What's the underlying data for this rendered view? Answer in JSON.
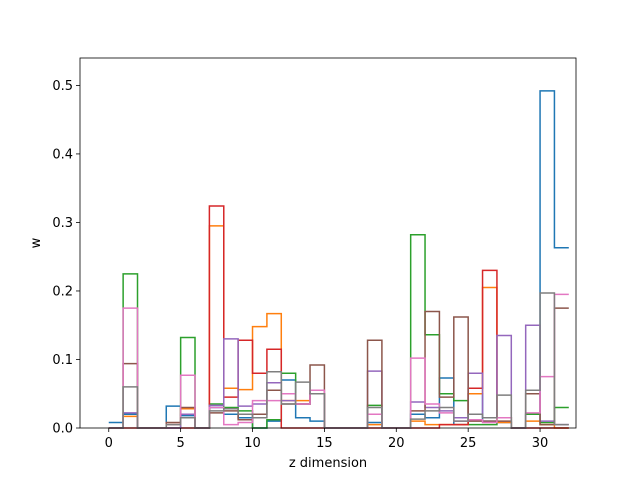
{
  "chart_data": {
    "type": "step",
    "title": "",
    "xlabel": "z dimension",
    "ylabel": "w",
    "xlim": [
      -2,
      32.5
    ],
    "ylim": [
      0,
      0.54
    ],
    "xticks": [
      0,
      5,
      10,
      15,
      20,
      25,
      30
    ],
    "yticks": [
      0.0,
      0.1,
      0.2,
      0.3,
      0.4,
      0.5
    ],
    "grid": false,
    "x": [
      0,
      1,
      2,
      3,
      4,
      5,
      6,
      7,
      8,
      9,
      10,
      11,
      12,
      13,
      14,
      15,
      16,
      17,
      18,
      19,
      20,
      21,
      22,
      23,
      24,
      25,
      26,
      27,
      28,
      29,
      30,
      31
    ],
    "series": [
      {
        "color": "#1f77b4",
        "values": [
          0.008,
          0.02,
          0,
          0,
          0.032,
          0.018,
          0,
          0.03,
          0.02,
          0.015,
          0,
          0.01,
          0.07,
          0.015,
          0.01,
          0,
          0,
          0,
          0.008,
          0,
          0,
          0.02,
          0.015,
          0.073,
          0.005,
          0.05,
          0.01,
          0.008,
          0,
          0.02,
          0.492,
          0.263
        ]
      },
      {
        "color": "#ff7f0e",
        "values": [
          0,
          0.017,
          0,
          0,
          0.005,
          0.028,
          0,
          0.295,
          0.058,
          0.056,
          0.148,
          0.167,
          0.04,
          0.04,
          0.05,
          0,
          0,
          0,
          0.005,
          0,
          0,
          0.01,
          0.005,
          0.005,
          0.005,
          0.05,
          0.205,
          0.008,
          0,
          0.01,
          0.005,
          0
        ]
      },
      {
        "color": "#2ca02c",
        "values": [
          0,
          0.225,
          0,
          0,
          0,
          0.132,
          0,
          0.035,
          0.03,
          0.025,
          0,
          0.012,
          0.08,
          0.035,
          0.05,
          0,
          0,
          0,
          0.033,
          0,
          0,
          0.282,
          0.136,
          0.05,
          0.04,
          0.005,
          0.005,
          0.015,
          0,
          0.02,
          0.008,
          0.03
        ]
      },
      {
        "color": "#d62728",
        "values": [
          0,
          0,
          0,
          0,
          0,
          0,
          0,
          0.324,
          0.045,
          0.128,
          0.08,
          0.115,
          0,
          0,
          0,
          0,
          0,
          0,
          0,
          0,
          0,
          0,
          0,
          0.005,
          0.005,
          0.058,
          0.23,
          0.015,
          0,
          0,
          0,
          0
        ]
      },
      {
        "color": "#9467bd",
        "values": [
          0,
          0.022,
          0,
          0,
          0,
          0.02,
          0,
          0.033,
          0.13,
          0.032,
          0.035,
          0.066,
          0.04,
          0.035,
          0.05,
          0,
          0,
          0,
          0.083,
          0,
          0,
          0.038,
          0.03,
          0.025,
          0.015,
          0.08,
          0.015,
          0.135,
          0,
          0.15,
          0.01,
          0.005
        ]
      },
      {
        "color": "#8c564b",
        "values": [
          0,
          0.094,
          0,
          0,
          0.008,
          0.03,
          0,
          0.022,
          0.025,
          0.012,
          0.02,
          0.055,
          0.035,
          0.035,
          0.092,
          0,
          0,
          0,
          0.128,
          0,
          0,
          0.025,
          0.17,
          0.045,
          0.162,
          0.01,
          0.01,
          0.01,
          0,
          0.05,
          0.005,
          0.175
        ]
      },
      {
        "color": "#e377c2",
        "values": [
          0,
          0.175,
          0,
          0,
          0.005,
          0.077,
          0,
          0.03,
          0.005,
          0.008,
          0.04,
          0.04,
          0.05,
          0.035,
          0.055,
          0,
          0,
          0,
          0.02,
          0,
          0,
          0.102,
          0.035,
          0.022,
          0.01,
          0.012,
          0.008,
          0.015,
          0,
          0.022,
          0.075,
          0.195
        ]
      },
      {
        "color": "#7f7f7f",
        "values": [
          0,
          0.06,
          0,
          0,
          0.005,
          0.015,
          0,
          0.025,
          0.028,
          0.02,
          0.015,
          0.082,
          0.035,
          0.067,
          0.05,
          0,
          0,
          0,
          0.03,
          0,
          0,
          0.013,
          0.025,
          0.03,
          0.01,
          0.02,
          0.015,
          0.048,
          0,
          0.055,
          0.197,
          0.005
        ]
      }
    ]
  }
}
